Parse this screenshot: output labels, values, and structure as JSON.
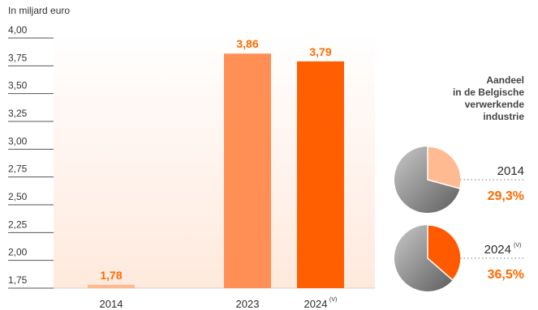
{
  "chart_data": [
    {
      "type": "bar",
      "ylabel": "In miljard euro",
      "ylim": [
        1.75,
        4.0
      ],
      "yticks": [
        "4,00",
        "3,75",
        "3,50",
        "3,25",
        "3,00",
        "2,75",
        "2,50",
        "2,25",
        "2,00",
        "1,75"
      ],
      "ytick_values": [
        4.0,
        3.75,
        3.5,
        3.25,
        3.0,
        2.75,
        2.5,
        2.25,
        2.0,
        1.75
      ],
      "categories": [
        "2014",
        "2023",
        "2024"
      ],
      "category_superscripts": [
        "",
        "",
        "(V)"
      ],
      "values": [
        1.78,
        3.86,
        3.79
      ],
      "value_labels": [
        "1,78",
        "3,86",
        "3,79"
      ],
      "colors": [
        "#FFB98F",
        "#FF8F55",
        "#FF5F00"
      ],
      "label_color": "#FF6A00",
      "grid": false
    },
    {
      "type": "pie",
      "title": "Aandeel in de Belgische verwerkende industrie",
      "title_lines": [
        "Aandeel",
        "in de Belgische",
        "verwerkende",
        "industrie"
      ],
      "items": [
        {
          "year": "2014",
          "superscript": "",
          "value": 29.3,
          "label": "29,3%",
          "color": "#FFBA91"
        },
        {
          "year": "2024",
          "superscript": "(V)",
          "value": 36.5,
          "label": "36,5%",
          "color": "#FF5A00"
        }
      ],
      "remainder_color": "#8E8E8E"
    }
  ]
}
